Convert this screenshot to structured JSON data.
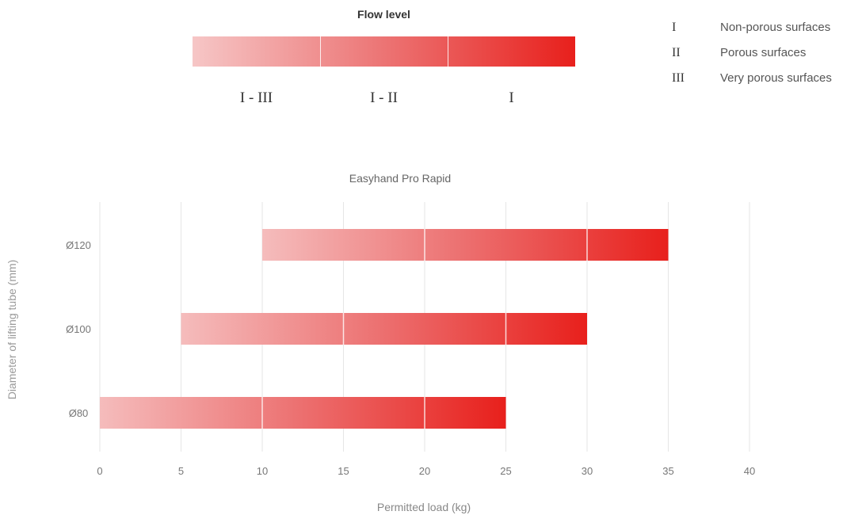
{
  "flow_scale": {
    "title": "Flow level",
    "labels": [
      "I - III",
      "I - II",
      "I"
    ],
    "colors": {
      "light": "#f6c6c6",
      "mid": "#ec7474",
      "dark": "#e8201c"
    }
  },
  "legend": [
    {
      "numeral": "I",
      "text": "Non-porous surfaces"
    },
    {
      "numeral": "II",
      "text": "Porous surfaces"
    },
    {
      "numeral": "III",
      "text": "Very porous surfaces"
    }
  ],
  "chart_data": {
    "type": "bar",
    "orientation": "horizontal-range",
    "title": "Easyhand Pro Rapid",
    "xlabel": "Permitted load (kg)",
    "ylabel": "Diameter of lifting tube (mm)",
    "xlim": [
      0,
      40
    ],
    "xticks": [
      0,
      5,
      10,
      15,
      20,
      25,
      30,
      35,
      40
    ],
    "grid": true,
    "categories": [
      "Ø120",
      "Ø100",
      "Ø80"
    ],
    "ranges": [
      {
        "category": "Ø120",
        "start": 10,
        "end": 35,
        "segment_breaks": [
          20,
          30
        ]
      },
      {
        "category": "Ø100",
        "start": 5,
        "end": 30,
        "segment_breaks": [
          15,
          25
        ]
      },
      {
        "category": "Ø80",
        "start": 0,
        "end": 25,
        "segment_breaks": [
          10,
          20
        ]
      }
    ]
  }
}
